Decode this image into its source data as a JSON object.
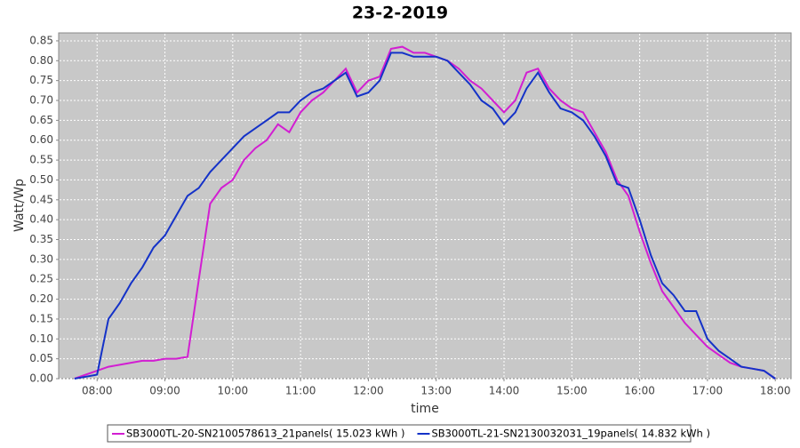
{
  "chart_data": {
    "type": "line",
    "title": "23-2-2019",
    "x_label": "time",
    "y_label": "Watt/Wp",
    "x": [
      "07:40",
      "07:50",
      "08:00",
      "08:10",
      "08:20",
      "08:30",
      "08:40",
      "08:50",
      "09:00",
      "09:10",
      "09:20",
      "09:30",
      "09:40",
      "09:50",
      "10:00",
      "10:10",
      "10:20",
      "10:30",
      "10:40",
      "10:50",
      "11:00",
      "11:10",
      "11:20",
      "11:30",
      "11:40",
      "11:50",
      "12:00",
      "12:10",
      "12:20",
      "12:30",
      "12:40",
      "12:50",
      "13:00",
      "13:10",
      "13:20",
      "13:30",
      "13:40",
      "13:50",
      "14:00",
      "14:10",
      "14:20",
      "14:30",
      "14:40",
      "14:50",
      "15:00",
      "15:10",
      "15:20",
      "15:30",
      "15:40",
      "15:50",
      "16:00",
      "16:10",
      "16:20",
      "16:30",
      "16:40",
      "16:50",
      "17:00",
      "17:10",
      "17:20",
      "17:30",
      "17:40",
      "17:50",
      "18:00"
    ],
    "series": [
      {
        "name": "SB3000TL-20-SN2100578613_21panels( 15.023 kWh )",
        "color": "#d21ed2",
        "values": [
          0,
          0.01,
          0.02,
          0.03,
          0.035,
          0.04,
          0.045,
          0.045,
          0.05,
          0.05,
          0.055,
          0.25,
          0.44,
          0.48,
          0.5,
          0.55,
          0.58,
          0.6,
          0.64,
          0.62,
          0.67,
          0.7,
          0.72,
          0.75,
          0.78,
          0.72,
          0.75,
          0.76,
          0.83,
          0.835,
          0.82,
          0.82,
          0.81,
          0.8,
          0.78,
          0.75,
          0.73,
          0.7,
          0.67,
          0.7,
          0.77,
          0.78,
          0.73,
          0.7,
          0.68,
          0.67,
          0.62,
          0.57,
          0.5,
          0.46,
          0.37,
          0.29,
          0.22,
          0.18,
          0.14,
          0.11,
          0.08,
          0.06,
          0.04,
          0.03,
          0.025,
          0.02,
          0
        ]
      },
      {
        "name": "SB3000TL-21-SN2130032031_19panels( 14.832 kWh )",
        "color": "#1432c8",
        "values": [
          0,
          0.005,
          0.01,
          0.15,
          0.19,
          0.24,
          0.28,
          0.33,
          0.36,
          0.41,
          0.46,
          0.48,
          0.52,
          0.55,
          0.58,
          0.61,
          0.63,
          0.65,
          0.67,
          0.67,
          0.7,
          0.72,
          0.73,
          0.75,
          0.77,
          0.71,
          0.72,
          0.75,
          0.82,
          0.82,
          0.81,
          0.81,
          0.81,
          0.8,
          0.77,
          0.74,
          0.7,
          0.68,
          0.64,
          0.67,
          0.73,
          0.77,
          0.72,
          0.68,
          0.67,
          0.65,
          0.61,
          0.56,
          0.49,
          0.48,
          0.4,
          0.31,
          0.24,
          0.21,
          0.17,
          0.17,
          0.1,
          0.07,
          0.05,
          0.03,
          0.025,
          0.02,
          0
        ]
      }
    ],
    "xlim": [
      "07:26",
      "18:14"
    ],
    "xticks": [
      "08:00",
      "09:00",
      "10:00",
      "11:00",
      "12:00",
      "13:00",
      "14:00",
      "15:00",
      "16:00",
      "17:00",
      "18:00"
    ],
    "ylim": [
      0,
      0.87
    ],
    "yticks": [
      {
        "value": 0,
        "label": "0.00"
      },
      {
        "value": 0.05,
        "label": "0.05"
      },
      {
        "value": 0.1,
        "label": "0.10"
      },
      {
        "value": 0.15,
        "label": "0.15"
      },
      {
        "value": 0.2,
        "label": "0.20"
      },
      {
        "value": 0.25,
        "label": "0.25"
      },
      {
        "value": 0.3,
        "label": "0.30"
      },
      {
        "value": 0.35,
        "label": "0.35"
      },
      {
        "value": 0.4,
        "label": "0.40"
      },
      {
        "value": 0.45,
        "label": "0.45"
      },
      {
        "value": 0.5,
        "label": "0.50"
      },
      {
        "value": 0.55,
        "label": "0.55"
      },
      {
        "value": 0.6,
        "label": "0.60"
      },
      {
        "value": 0.65,
        "label": "0.65"
      },
      {
        "value": 0.7,
        "label": "0.70"
      },
      {
        "value": 0.75,
        "label": "0.75"
      },
      {
        "value": 0.8,
        "label": "0.80"
      },
      {
        "value": 0.85,
        "label": "0.85"
      }
    ],
    "grid": true,
    "legend": "bottom"
  }
}
